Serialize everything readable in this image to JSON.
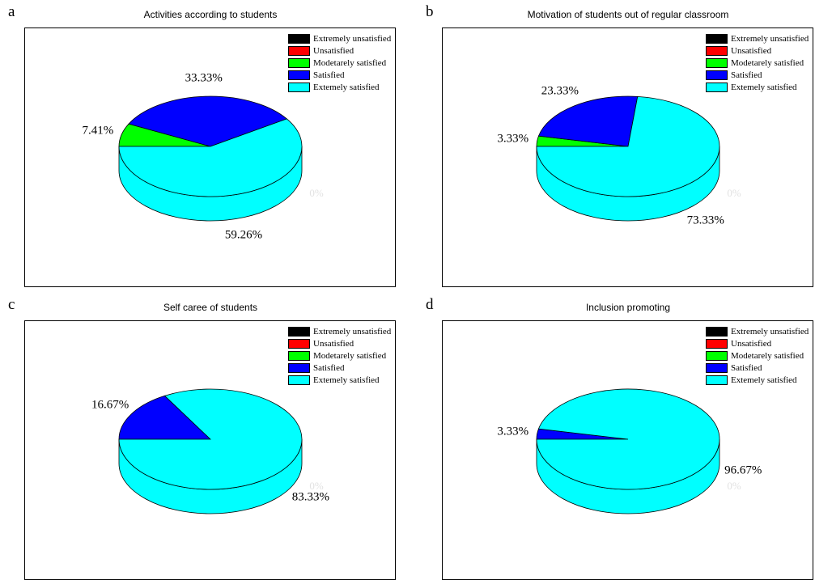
{
  "legend_labels": [
    "Extremely unsatisfied",
    "Unsatisfied",
    "Modetarely satisfied",
    "Satisfied",
    "Extemely satisfied"
  ],
  "colors": [
    "#000000",
    "#ff0000",
    "#00ff00",
    "#0000ff",
    "#00ffff"
  ],
  "chart_data": [
    {
      "type": "pie",
      "panel_letter": "a",
      "title": "Activities according to students",
      "values": [
        0,
        0,
        7.41,
        33.33,
        59.26
      ],
      "labels": [
        "",
        "",
        "7.41%",
        "33.33%",
        "59.26%"
      ],
      "zero_label": "0%"
    },
    {
      "type": "pie",
      "panel_letter": "b",
      "title": "Motivation of students out of regular classroom",
      "values": [
        0,
        0,
        3.33,
        23.33,
        73.33
      ],
      "labels": [
        "",
        "",
        "3.33%",
        "23.33%",
        "73.33%"
      ],
      "zero_label": "0%"
    },
    {
      "type": "pie",
      "panel_letter": "c",
      "title": "Self caree of students",
      "values": [
        0,
        0,
        0,
        16.67,
        83.33
      ],
      "labels": [
        "",
        "",
        "",
        "16.67%",
        "83.33%"
      ],
      "zero_label": "0%"
    },
    {
      "type": "pie",
      "panel_letter": "d",
      "title": "Inclusion promoting",
      "values": [
        0,
        0,
        0,
        3.33,
        96.67
      ],
      "labels": [
        "",
        "",
        "",
        "3.33%",
        "96.67%"
      ],
      "zero_label": "0%"
    }
  ]
}
